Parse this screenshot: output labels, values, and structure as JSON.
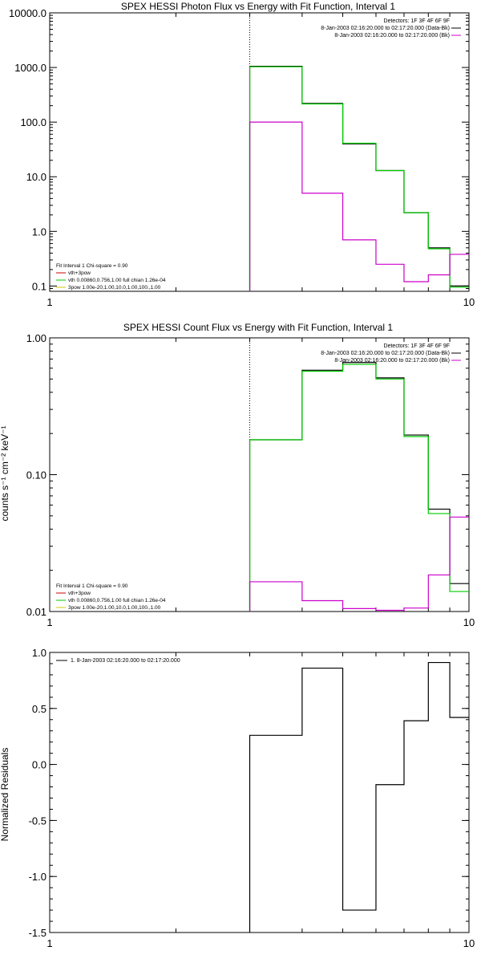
{
  "chart_data": [
    {
      "type": "line",
      "title": "SPEX HESSI Photon Flux vs Energy with Fit Function, Interval 1",
      "xscale": "log",
      "yscale": "log",
      "xlim": [
        1,
        10
      ],
      "ylim": [
        0.08,
        10000
      ],
      "x_ticks": [
        {
          "v": 1,
          "label": "1"
        },
        {
          "v": 10,
          "label": "10"
        }
      ],
      "y_ticks": [
        {
          "v": 0.1,
          "label": "0.1"
        },
        {
          "v": 1,
          "label": "1.0"
        },
        {
          "v": 10,
          "label": "10.0"
        },
        {
          "v": 100,
          "label": "100.0"
        },
        {
          "v": 1000,
          "label": "1000.0"
        },
        {
          "v": 10000,
          "label": "10000.0"
        }
      ],
      "vline_x": 3,
      "bin_edges": [
        3,
        4,
        5,
        6,
        7,
        8,
        9,
        10
      ],
      "series": [
        {
          "color": "#000000",
          "values": [
            1050,
            220,
            40,
            13,
            2.2,
            0.5,
            0.1
          ]
        },
        {
          "color": "#00cc00",
          "values": [
            1030,
            215,
            41,
            13,
            2.2,
            0.48,
            0.095
          ]
        },
        {
          "color": "#cc00cc",
          "values": [
            100,
            5,
            0.7,
            0.25,
            0.12,
            0.16,
            0.38
          ]
        }
      ],
      "legend_top": [
        "Detectors: 1F 3F 4F 6F 9F",
        "8-Jan-2003 02:16:20.000 to 02:17:20.000 (Data-Bk)",
        "8-Jan-2003 02:16:20.000 to 02:17:20.000 (Bk)"
      ],
      "legend_top_colors": [
        "",
        "#000000",
        "#cc00cc"
      ],
      "legend_bottom": [
        "Fit Interval 1   Chi-square = 0.90",
        "vth+3pow",
        "vth 0.00860,0.756,1.00  full chian 1.26e-04",
        "3pow 1.00e-20,1.00,10.0,1.00,100.,1.00"
      ],
      "legend_bottom_colors": [
        "",
        "#cc0000",
        "#00cc00",
        "#cccc00"
      ]
    },
    {
      "type": "line",
      "title": "SPEX HESSI Count Flux vs Energy with Fit Function, Interval 1",
      "ylabel": "counts s⁻¹ cm⁻² keV⁻¹",
      "xscale": "log",
      "yscale": "log",
      "xlim": [
        1,
        10
      ],
      "ylim": [
        0.01,
        1
      ],
      "x_ticks": [
        {
          "v": 1,
          "label": "1"
        },
        {
          "v": 10,
          "label": "10"
        }
      ],
      "y_ticks": [
        {
          "v": 0.01,
          "label": "0.01"
        },
        {
          "v": 0.1,
          "label": "0.10"
        },
        {
          "v": 1,
          "label": "1.00"
        }
      ],
      "vline_x": 3,
      "bin_edges": [
        3,
        4,
        5,
        6,
        7,
        8,
        9,
        10
      ],
      "series": [
        {
          "color": "#000000",
          "values": [
            0.18,
            0.58,
            0.66,
            0.51,
            0.195,
            0.056,
            0.016
          ]
        },
        {
          "color": "#00cc00",
          "values": [
            0.18,
            0.57,
            0.64,
            0.5,
            0.19,
            0.052,
            0.014
          ]
        },
        {
          "color": "#cc00cc",
          "values": [
            0.0165,
            0.012,
            0.0105,
            0.0102,
            0.0106,
            0.0185,
            0.049
          ]
        }
      ],
      "legend_top": [
        "Detectors: 1F 3F 4F 6F 9F",
        "8-Jan-2003 02:16:20.000 to 02:17:20.000 (Data-Bk)",
        "8-Jan-2003 02:16:20.000 to 02:17:20.000 (Bk)"
      ],
      "legend_top_colors": [
        "",
        "#000000",
        "#cc00cc"
      ],
      "legend_bottom": [
        "Fit Interval 1   Chi-square = 0.90",
        "vth+3pow",
        "vth 0.00860,0.756,1.00  full chian 1.26e-04",
        "3pow 1.00e-20,1.00,10.0,1.00,100.,1.00"
      ],
      "legend_bottom_colors": [
        "",
        "#cc0000",
        "#00cc00",
        "#cccc00"
      ]
    },
    {
      "type": "line",
      "ylabel": "Normalized Residuals",
      "xscale": "log",
      "yscale": "linear",
      "xlim": [
        1,
        10
      ],
      "ylim": [
        -1.5,
        1.0
      ],
      "x_ticks": [
        {
          "v": 1,
          "label": "1"
        },
        {
          "v": 10,
          "label": "10"
        }
      ],
      "y_ticks": [
        {
          "v": 1.0,
          "label": "1.0"
        },
        {
          "v": 0.5,
          "label": "0.5"
        },
        {
          "v": 0.0,
          "label": "0.0"
        },
        {
          "v": -0.5,
          "label": "-0.5"
        },
        {
          "v": -1.0,
          "label": "-1.0"
        },
        {
          "v": -1.5,
          "label": "-1.5"
        }
      ],
      "bin_edges": [
        3,
        4,
        5,
        6,
        7,
        8,
        9,
        10
      ],
      "series": [
        {
          "color": "#000000",
          "values": [
            0.26,
            0.86,
            -1.3,
            -0.18,
            0.39,
            0.91,
            0.42
          ]
        }
      ],
      "legend_top": [
        "1.  8-Jan-2003 02:16:20.000 to 02:17:20.000"
      ],
      "legend_top_colors": [
        "#000000"
      ]
    }
  ]
}
